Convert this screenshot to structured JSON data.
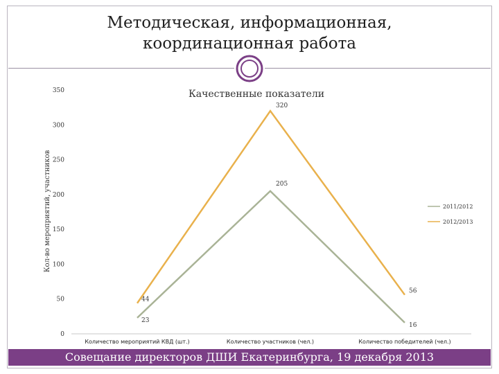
{
  "slide": {
    "title_line1": "Методическая, информационная,",
    "title_line2": "координационная работа",
    "footer": "Совещание директоров ДШИ Екатеринбурга, 19 декабря 2013"
  },
  "colors": {
    "accent": "#7b3f86",
    "series_2011": "#a9b396",
    "series_2012": "#e9b14c"
  },
  "chart_data": {
    "type": "line",
    "title": "Качественные показатели",
    "ylabel": "Кол-во мероприятий, участников",
    "xlabel": "",
    "categories": [
      "Количество мероприятий КВД (шт.)",
      "Количество участников (чел.)",
      "Количество победителей (чел.)"
    ],
    "series": [
      {
        "name": "2011/2012",
        "values": [
          23,
          205,
          16
        ]
      },
      {
        "name": "2012/2013",
        "values": [
          44,
          320,
          56
        ]
      }
    ],
    "ylim": [
      0,
      350
    ],
    "yticks": [
      0,
      50,
      100,
      150,
      200,
      250,
      300,
      350
    ],
    "grid": false,
    "legend": "right"
  }
}
